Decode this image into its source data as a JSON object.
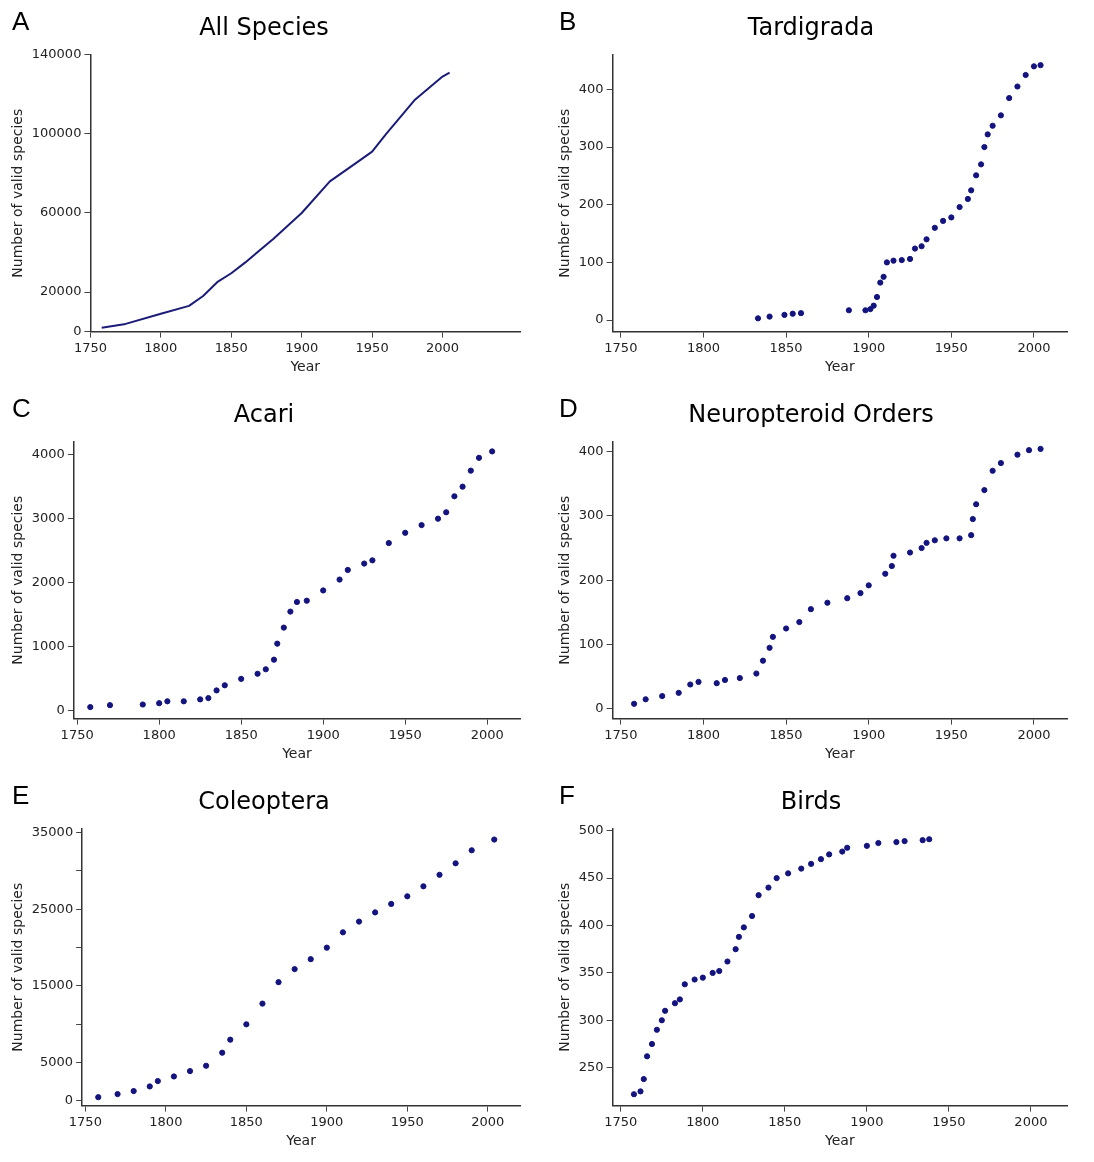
{
  "chart_data": [
    {
      "type": "line",
      "title": "All Species",
      "xlabel": "Year",
      "ylabel": "Number of valid species",
      "annotations": [
        "A"
      ],
      "marker": "none",
      "line_style": "solid",
      "legend": false,
      "grid": false,
      "xlim": [
        1750,
        2055
      ],
      "xticks": [
        1750,
        1800,
        1850,
        1900,
        1950,
        2000
      ],
      "ylim": [
        0,
        140000
      ],
      "yticks": [
        0,
        20000,
        60000,
        100000,
        140000
      ],
      "series": [
        {
          "color": "#1c1c78",
          "x": [
            1758,
            1775,
            1800,
            1820,
            1830,
            1840,
            1850,
            1860,
            1880,
            1900,
            1920,
            1940,
            1950,
            1960,
            1980,
            2000,
            2005
          ],
          "values": [
            2000,
            3900,
            9000,
            13000,
            18000,
            25000,
            29500,
            35000,
            47000,
            60000,
            76000,
            86000,
            91000,
            100000,
            117000,
            129000,
            131000
          ]
        }
      ]
    },
    {
      "type": "scatter",
      "title": "Tardigrada",
      "xlabel": "Year",
      "ylabel": "Number of valid species",
      "annotations": [
        "B"
      ],
      "marker": "circle",
      "legend": false,
      "grid": false,
      "xlim": [
        1745,
        2020
      ],
      "xticks": [
        1750,
        1800,
        1850,
        1900,
        1950,
        2000
      ],
      "ylim": [
        -20,
        460
      ],
      "yticks": [
        0,
        100,
        200,
        300,
        400
      ],
      "series": [
        {
          "color": "#14147f",
          "x": [
            1833,
            1840,
            1849,
            1854,
            1859,
            1888,
            1898,
            1901,
            1903,
            1905,
            1907,
            1909,
            1911,
            1915,
            1920,
            1925,
            1928,
            1932,
            1935,
            1940,
            1945,
            1950,
            1955,
            1960,
            1962,
            1965,
            1968,
            1970,
            1972,
            1975,
            1980,
            1985,
            1990,
            1995,
            2000,
            2004
          ],
          "values": [
            3,
            6,
            9,
            11,
            12,
            17,
            17,
            19,
            25,
            40,
            65,
            75,
            100,
            103,
            104,
            106,
            124,
            128,
            140,
            160,
            172,
            178,
            196,
            210,
            225,
            251,
            270,
            300,
            322,
            337,
            355,
            385,
            405,
            425,
            440,
            442
          ]
        }
      ]
    },
    {
      "type": "scatter",
      "title": "Acari",
      "xlabel": "Year",
      "ylabel": "Number of valid species",
      "annotations": [
        "C"
      ],
      "marker": "circle",
      "legend": false,
      "grid": false,
      "xlim": [
        1748,
        2020
      ],
      "xticks": [
        1750,
        1800,
        1850,
        1900,
        1950,
        2000
      ],
      "ylim": [
        -120,
        4200
      ],
      "yticks": [
        0,
        1000,
        2000,
        3000,
        4000
      ],
      "series": [
        {
          "color": "#14147f",
          "x": [
            1758,
            1770,
            1790,
            1800,
            1805,
            1815,
            1825,
            1830,
            1835,
            1840,
            1850,
            1860,
            1865,
            1870,
            1872,
            1876,
            1880,
            1884,
            1890,
            1900,
            1910,
            1915,
            1925,
            1930,
            1940,
            1950,
            1960,
            1970,
            1975,
            1980,
            1985,
            1990,
            1995,
            2003
          ],
          "values": [
            60,
            90,
            100,
            120,
            150,
            150,
            180,
            200,
            320,
            400,
            500,
            580,
            650,
            800,
            1050,
            1300,
            1550,
            1700,
            1720,
            1880,
            2050,
            2200,
            2300,
            2350,
            2620,
            2780,
            2900,
            3000,
            3100,
            3350,
            3500,
            3750,
            3950,
            4050
          ]
        }
      ]
    },
    {
      "type": "scatter",
      "title": "Neuropteroid Orders",
      "xlabel": "Year",
      "ylabel": "Number of valid species",
      "annotations": [
        "D"
      ],
      "marker": "circle",
      "legend": false,
      "grid": false,
      "xlim": [
        1745,
        2020
      ],
      "xticks": [
        1750,
        1800,
        1850,
        1900,
        1950,
        2000
      ],
      "ylim": [
        -15,
        415
      ],
      "yticks": [
        0,
        100,
        200,
        300,
        400
      ],
      "series": [
        {
          "color": "#14147f",
          "x": [
            1758,
            1765,
            1775,
            1785,
            1792,
            1797,
            1808,
            1813,
            1822,
            1832,
            1836,
            1840,
            1842,
            1850,
            1858,
            1865,
            1875,
            1887,
            1895,
            1900,
            1910,
            1914,
            1915,
            1925,
            1932,
            1935,
            1940,
            1947,
            1955,
            1962,
            1963,
            1965,
            1970,
            1975,
            1980,
            1990,
            1997,
            2004
          ],
          "values": [
            8,
            15,
            20,
            25,
            38,
            42,
            40,
            45,
            48,
            55,
            75,
            95,
            112,
            125,
            135,
            155,
            165,
            172,
            180,
            192,
            210,
            222,
            238,
            243,
            250,
            258,
            262,
            265,
            265,
            270,
            295,
            318,
            340,
            370,
            382,
            395,
            402,
            404
          ]
        }
      ]
    },
    {
      "type": "scatter",
      "title": "Coleoptera",
      "xlabel": "Year",
      "ylabel": "Number of valid species",
      "annotations": [
        "E"
      ],
      "marker": "circle",
      "legend": false,
      "grid": false,
      "xlim": [
        1748,
        2020
      ],
      "xticks": [
        1750,
        1800,
        1850,
        1900,
        1950,
        2000
      ],
      "ylim": [
        -600,
        35500
      ],
      "yticks": [
        0,
        5000,
        {
          "value": 10000,
          "label": null
        },
        15000,
        {
          "value": 20000,
          "label": null
        },
        25000,
        {
          "value": 30000,
          "label": null
        },
        35000
      ],
      "series": [
        {
          "color": "#14147f",
          "x": [
            1758,
            1770,
            1780,
            1790,
            1795,
            1805,
            1815,
            1825,
            1835,
            1840,
            1850,
            1860,
            1870,
            1880,
            1890,
            1900,
            1910,
            1920,
            1930,
            1940,
            1950,
            1960,
            1970,
            1980,
            1990,
            2004
          ],
          "values": [
            500,
            900,
            1300,
            1900,
            2600,
            3200,
            3900,
            4600,
            6300,
            8000,
            10000,
            12700,
            15500,
            17200,
            18500,
            20000,
            22000,
            23400,
            24600,
            25700,
            26700,
            28000,
            29500,
            31000,
            32700,
            34100
          ]
        }
      ]
    },
    {
      "type": "scatter",
      "title": "Birds",
      "xlabel": "Year",
      "ylabel": "Number of valid species",
      "annotations": [
        "F"
      ],
      "marker": "circle",
      "legend": false,
      "grid": false,
      "xlim": [
        1745,
        2022
      ],
      "xticks": [
        1750,
        1800,
        1850,
        1900,
        1950,
        2000
      ],
      "ylim": [
        210,
        502
      ],
      "yticks": [
        250,
        300,
        350,
        400,
        450,
        500
      ],
      "series": [
        {
          "color": "#14147f",
          "x": [
            1758,
            1762,
            1764,
            1766,
            1769,
            1772,
            1775,
            1777,
            1783,
            1786,
            1789,
            1795,
            1800,
            1806,
            1810,
            1815,
            1820,
            1822,
            1825,
            1830,
            1834,
            1840,
            1845,
            1852,
            1860,
            1866,
            1872,
            1877,
            1885,
            1888,
            1900,
            1907,
            1918,
            1923,
            1934,
            1938
          ],
          "values": [
            222,
            225,
            238,
            262,
            275,
            290,
            300,
            310,
            318,
            322,
            338,
            343,
            345,
            350,
            352,
            362,
            375,
            388,
            398,
            410,
            432,
            440,
            450,
            455,
            460,
            465,
            470,
            475,
            478,
            482,
            484,
            487,
            488,
            489,
            490,
            491
          ]
        }
      ]
    }
  ]
}
